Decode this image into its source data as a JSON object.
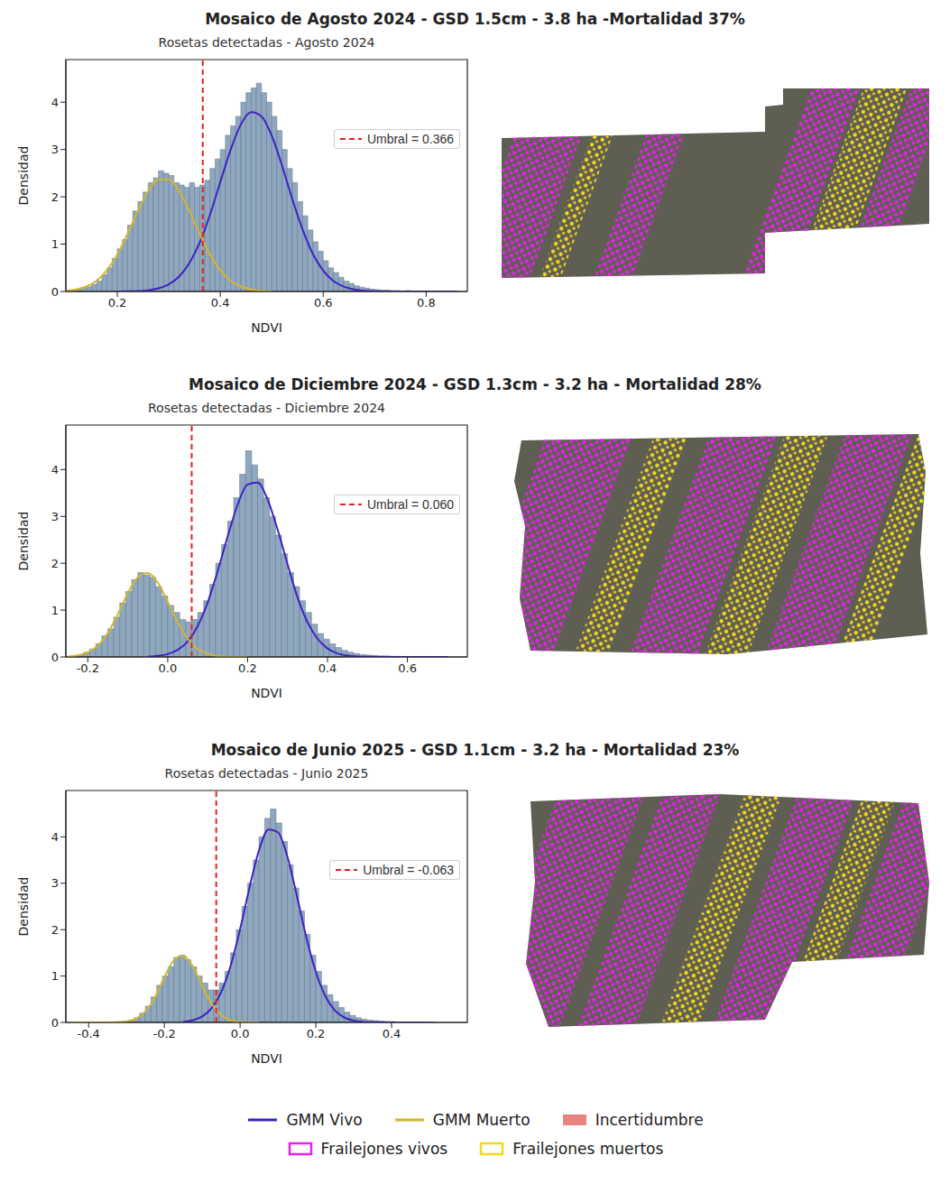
{
  "chart_data": [
    {
      "type": "histogram",
      "panel_title": "Mosaico de Agosto 2024 - GSD 1.5cm - 3.8 ha -Mortalidad 37%",
      "title": "Rosetas detectadas - Agosto 2024",
      "x_label": "NDVI",
      "y_label": "Densidad",
      "color": "#8fa8c0",
      "bins": [
        0.1,
        0.11,
        0.12,
        0.13,
        0.14,
        0.15,
        0.16,
        0.17,
        0.18,
        0.19,
        0.2,
        0.21,
        0.22,
        0.23,
        0.24,
        0.25,
        0.26,
        0.27,
        0.28,
        0.29,
        0.3,
        0.31,
        0.32,
        0.33,
        0.34,
        0.35,
        0.36,
        0.37,
        0.38,
        0.39,
        0.4,
        0.41,
        0.42,
        0.43,
        0.44,
        0.45,
        0.46,
        0.47,
        0.48,
        0.49,
        0.5,
        0.51,
        0.52,
        0.53,
        0.54,
        0.55,
        0.56,
        0.57,
        0.58,
        0.59,
        0.6,
        0.61,
        0.62,
        0.63,
        0.64,
        0.65,
        0.66,
        0.67,
        0.68,
        0.69,
        0.7,
        0.71,
        0.72,
        0.73,
        0.74,
        0.75,
        0.76,
        0.77,
        0.78,
        0.79,
        0.8,
        0.81,
        0.82,
        0.83,
        0.84,
        0.85,
        0.86,
        0.87,
        0.88
      ],
      "counts": [
        0.02,
        0.03,
        0.05,
        0.07,
        0.1,
        0.15,
        0.22,
        0.35,
        0.5,
        0.7,
        0.9,
        1.1,
        1.4,
        1.7,
        1.9,
        2.1,
        2.3,
        2.4,
        2.55,
        2.5,
        2.45,
        2.3,
        2.25,
        2.2,
        2.3,
        2.2,
        2.25,
        2.35,
        2.6,
        2.8,
        3.0,
        3.3,
        3.5,
        3.7,
        4.0,
        4.2,
        4.3,
        4.4,
        4.2,
        4.0,
        3.7,
        3.4,
        3.0,
        2.6,
        2.3,
        1.9,
        1.6,
        1.3,
        1.05,
        0.85,
        0.65,
        0.5,
        0.4,
        0.3,
        0.22,
        0.17,
        0.12,
        0.09,
        0.07,
        0.05,
        0.04,
        0.03,
        0.03,
        0.02,
        0.02,
        0.01,
        0.02,
        0.01,
        0.01,
        0.01,
        0.01,
        0,
        0.01,
        0,
        0,
        0.01,
        0,
        0
      ],
      "series": [
        {
          "name": "GMM Vivo",
          "type": "line",
          "color": "#3d22c4",
          "line_style": "solid",
          "x": [
            0.2,
            0.22,
            0.24,
            0.26,
            0.28,
            0.3,
            0.32,
            0.34,
            0.36,
            0.38,
            0.4,
            0.42,
            0.44,
            0.46,
            0.48,
            0.5,
            0.52,
            0.54,
            0.56,
            0.58,
            0.6,
            0.62,
            0.64,
            0.66,
            0.68,
            0.7,
            0.74,
            0.8,
            0.86
          ],
          "values": [
            0.001,
            0.003,
            0.009,
            0.026,
            0.066,
            0.152,
            0.315,
            0.6,
            1.03,
            1.62,
            2.31,
            2.99,
            3.53,
            3.79,
            3.7,
            3.29,
            2.66,
            1.95,
            1.31,
            0.79,
            0.44,
            0.22,
            0.102,
            0.042,
            0.016,
            0.006,
            0.001,
            0,
            0
          ]
        },
        {
          "name": "GMM Muerto",
          "type": "line",
          "color": "#d4b52a",
          "line_style": "solid",
          "x": [
            0.1,
            0.12,
            0.14,
            0.16,
            0.18,
            0.2,
            0.22,
            0.24,
            0.26,
            0.28,
            0.3,
            0.32,
            0.34,
            0.36,
            0.38,
            0.4,
            0.42,
            0.44,
            0.46,
            0.48,
            0.5
          ],
          "values": [
            0.016,
            0.044,
            0.105,
            0.23,
            0.45,
            0.78,
            1.22,
            1.7,
            2.12,
            2.37,
            2.37,
            2.12,
            1.7,
            1.22,
            0.78,
            0.45,
            0.23,
            0.105,
            0.044,
            0.016,
            0.005
          ]
        }
      ],
      "annotations": [
        {
          "type": "vline",
          "x": 0.366,
          "label": "Umbral = 0.366",
          "color": "#e3211c",
          "line_style": "dashed"
        }
      ],
      "xlim": [
        0.1,
        0.88
      ],
      "xticks": [
        0.2,
        0.4,
        0.6,
        0.8
      ],
      "ylim": [
        0,
        4.9
      ],
      "yticks": [
        0,
        1,
        2,
        3,
        4
      ]
    },
    {
      "type": "histogram",
      "panel_title": "Mosaico de Diciembre 2024 - GSD 1.3cm - 3.2 ha - Mortalidad 28%",
      "title": "Rosetas detectadas - Diciembre 2024",
      "x_label": "NDVI",
      "y_label": "Densidad",
      "color": "#8fa8c0",
      "bins": [
        -0.24,
        -0.225,
        -0.21,
        -0.195,
        -0.18,
        -0.165,
        -0.15,
        -0.135,
        -0.12,
        -0.105,
        -0.09,
        -0.075,
        -0.06,
        -0.045,
        -0.03,
        -0.015,
        0,
        0.015,
        0.03,
        0.045,
        0.06,
        0.075,
        0.09,
        0.105,
        0.12,
        0.135,
        0.15,
        0.165,
        0.18,
        0.195,
        0.21,
        0.225,
        0.24,
        0.255,
        0.27,
        0.285,
        0.3,
        0.315,
        0.33,
        0.345,
        0.36,
        0.375,
        0.39,
        0.405,
        0.42,
        0.435,
        0.45,
        0.465,
        0.48,
        0.495,
        0.51,
        0.525,
        0.54,
        0.555,
        0.57,
        0.585,
        0.6,
        0.615,
        0.63,
        0.645,
        0.66,
        0.675,
        0.69,
        0.705,
        0.72
      ],
      "counts": [
        0.02,
        0.05,
        0.1,
        0.17,
        0.28,
        0.45,
        0.6,
        0.85,
        1.15,
        1.4,
        1.65,
        1.8,
        1.75,
        1.7,
        1.5,
        1.3,
        1.1,
        0.95,
        0.8,
        0.75,
        0.8,
        0.95,
        1.2,
        1.55,
        2.0,
        2.4,
        2.9,
        3.4,
        3.9,
        4.4,
        4.1,
        3.8,
        3.4,
        3.0,
        2.6,
        2.2,
        1.8,
        1.5,
        1.2,
        0.95,
        0.7,
        0.5,
        0.38,
        0.28,
        0.2,
        0.14,
        0.1,
        0.07,
        0.05,
        0.04,
        0.03,
        0.02,
        0.02,
        0.01,
        0.01,
        0.01,
        0.01,
        0,
        0.01,
        0,
        0,
        0,
        0,
        0
      ],
      "series": [
        {
          "name": "GMM Vivo",
          "type": "line",
          "color": "#3d22c4",
          "line_style": "solid",
          "x": [
            -0.05,
            -0.025,
            0,
            0.025,
            0.05,
            0.075,
            0.1,
            0.125,
            0.15,
            0.175,
            0.2,
            0.225,
            0.25,
            0.275,
            0.3,
            0.325,
            0.35,
            0.375,
            0.4,
            0.425,
            0.45,
            0.475,
            0.5,
            0.6,
            0.7
          ],
          "values": [
            0.007,
            0.022,
            0.061,
            0.15,
            0.33,
            0.66,
            1.16,
            1.83,
            2.57,
            3.25,
            3.68,
            3.72,
            3.36,
            2.72,
            1.98,
            1.27,
            0.74,
            0.39,
            0.18,
            0.074,
            0.028,
            0.009,
            0.003,
            0,
            0
          ]
        },
        {
          "name": "GMM Muerto",
          "type": "line",
          "color": "#d4b52a",
          "line_style": "solid",
          "x": [
            -0.25,
            -0.225,
            -0.2,
            -0.175,
            -0.15,
            -0.125,
            -0.1,
            -0.075,
            -0.05,
            -0.025,
            0,
            0.025,
            0.05,
            0.075,
            0.1,
            0.125,
            0.15,
            0.2
          ],
          "values": [
            0.009,
            0.033,
            0.097,
            0.24,
            0.51,
            0.91,
            1.36,
            1.7,
            1.79,
            1.59,
            1.18,
            0.74,
            0.39,
            0.17,
            0.064,
            0.02,
            0.005,
            0
          ]
        }
      ],
      "annotations": [
        {
          "type": "vline",
          "x": 0.06,
          "label": "Umbral = 0.060",
          "color": "#e3211c",
          "line_style": "dashed"
        }
      ],
      "xlim": [
        -0.255,
        0.75
      ],
      "xticks": [
        -0.2,
        {
          "value": 0,
          "label": "0.0"
        },
        0.2,
        0.4,
        0.6
      ],
      "ylim": [
        0,
        4.95
      ],
      "yticks": [
        0,
        1,
        2,
        3,
        4
      ]
    },
    {
      "type": "histogram",
      "panel_title": "Mosaico de Junio 2025 - GSD 1.1cm - 3.2 ha - Mortalidad 23%",
      "title": "Rosetas detectadas - Junio 2025",
      "x_label": "NDVI",
      "y_label": "Densidad",
      "color": "#8fa8c0",
      "bins": [
        -0.37,
        -0.355,
        -0.34,
        -0.325,
        -0.31,
        -0.295,
        -0.28,
        -0.265,
        -0.25,
        -0.235,
        -0.22,
        -0.205,
        -0.19,
        -0.175,
        -0.16,
        -0.145,
        -0.13,
        -0.115,
        -0.1,
        -0.085,
        -0.07,
        -0.055,
        -0.04,
        -0.025,
        -0.01,
        0.005,
        0.02,
        0.035,
        0.05,
        0.065,
        0.08,
        0.095,
        0.11,
        0.125,
        0.14,
        0.155,
        0.17,
        0.185,
        0.2,
        0.215,
        0.23,
        0.245,
        0.26,
        0.275,
        0.29,
        0.305,
        0.32,
        0.335,
        0.35,
        0.365,
        0.38,
        0.395,
        0.41,
        0.425,
        0.44,
        0.455,
        0.47,
        0.485,
        0.5,
        0.515,
        0.53,
        0.545,
        0.56
      ],
      "counts": [
        0.01,
        0.01,
        0.01,
        0.02,
        0.03,
        0.05,
        0.1,
        0.2,
        0.35,
        0.55,
        0.8,
        1.0,
        1.2,
        1.4,
        1.45,
        1.35,
        1.2,
        1.0,
        0.85,
        0.7,
        0.7,
        0.85,
        1.1,
        1.5,
        2.0,
        2.5,
        3.0,
        3.5,
        4.0,
        4.4,
        4.6,
        4.3,
        3.9,
        3.4,
        2.9,
        2.4,
        1.9,
        1.45,
        1.1,
        0.8,
        0.6,
        0.45,
        0.32,
        0.22,
        0.15,
        0.1,
        0.07,
        0.05,
        0.04,
        0.03,
        0.02,
        0.02,
        0.01,
        0.01,
        0.01,
        0,
        0.01,
        0,
        0.01,
        0,
        0,
        0
      ],
      "series": [
        {
          "name": "GMM Vivo",
          "type": "line",
          "color": "#3d22c4",
          "line_style": "solid",
          "x": [
            -0.15,
            -0.125,
            -0.1,
            -0.075,
            -0.05,
            -0.025,
            0,
            0.025,
            0.05,
            0.075,
            0.1,
            0.125,
            0.15,
            0.175,
            0.2,
            0.225,
            0.25,
            0.275,
            0.3,
            0.325,
            0.35,
            0.4,
            0.5
          ],
          "values": [
            0.015,
            0.047,
            0.128,
            0.31,
            0.65,
            1.22,
            2.01,
            2.91,
            3.71,
            4.16,
            4.1,
            3.57,
            2.73,
            1.83,
            1.09,
            0.57,
            0.26,
            0.107,
            0.038,
            0.012,
            0.003,
            0,
            0
          ]
        },
        {
          "name": "GMM Muerto",
          "type": "line",
          "color": "#d4b52a",
          "line_style": "solid",
          "x": [
            -0.45,
            -0.4,
            -0.375,
            -0.35,
            -0.325,
            -0.3,
            -0.275,
            -0.25,
            -0.225,
            -0.2,
            -0.175,
            -0.15,
            -0.125,
            -0.1,
            -0.075,
            -0.05,
            -0.025,
            0,
            0.05
          ],
          "values": [
            0,
            0,
            0,
            0.001,
            0.0045,
            0.022,
            0.081,
            0.24,
            0.54,
            0.97,
            1.34,
            1.44,
            1.21,
            0.79,
            0.4,
            0.16,
            0.049,
            0.012,
            0
          ]
        }
      ],
      "annotations": [
        {
          "type": "vline",
          "x": -0.063,
          "label": "Umbral = -0.063",
          "color": "#e3211c",
          "line_style": "dashed"
        }
      ],
      "xlim": [
        -0.46,
        0.6
      ],
      "xticks": [
        -0.4,
        -0.2,
        {
          "value": 0,
          "label": "0.0"
        },
        0.2,
        0.4
      ],
      "ylim": [
        0,
        5
      ],
      "yticks": [
        0,
        1,
        2,
        3,
        4
      ]
    }
  ],
  "figure_legend": {
    "items": [
      {
        "name": "GMM Vivo",
        "color": "#3d22c4",
        "marker": "line"
      },
      {
        "name": "GMM Muerto",
        "color": "#d4b52a",
        "marker": "line"
      },
      {
        "name": "Incertidumbre",
        "color": "#e88480",
        "marker": "patch"
      },
      {
        "name": "Frailejones vivos",
        "color": "#e81ff0",
        "marker": "box"
      },
      {
        "name": "Frailejones muertos",
        "color": "#f4d81c",
        "marker": "box"
      }
    ]
  }
}
